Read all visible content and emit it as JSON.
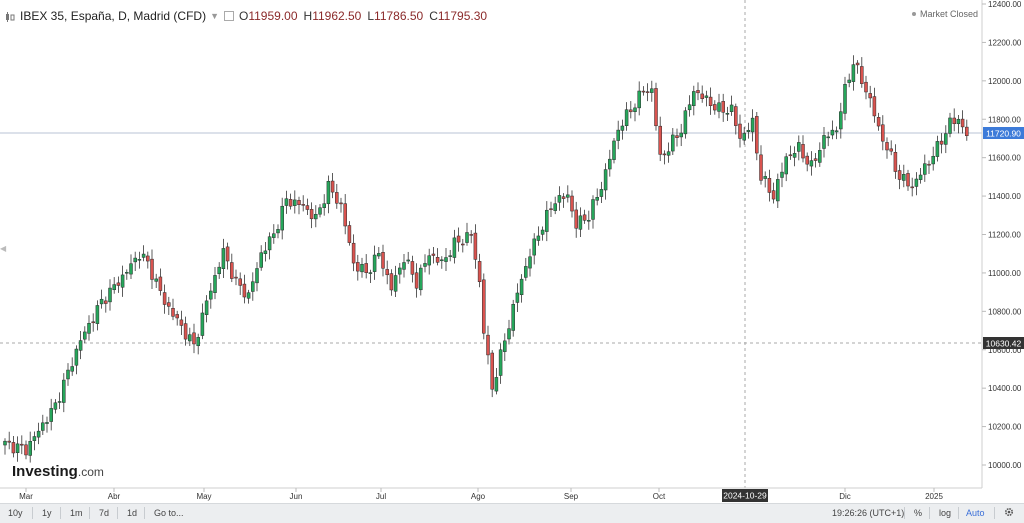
{
  "legend": {
    "symbol": "IBEX 35, España, D, Madrid (CFD)",
    "open_label": "O",
    "open": "11959.00",
    "high_label": "H",
    "high": "11962.50",
    "low_label": "L",
    "low": "11786.50",
    "close_label": "C",
    "close": "11795.30"
  },
  "status": {
    "text": "Market Closed"
  },
  "logo": {
    "main": "Investing",
    "suffix": ".com"
  },
  "crosshair": {
    "date_label": "2024-10-29",
    "price_label": "10630.42",
    "price": 10630.42
  },
  "last_price": {
    "label": "11720.90",
    "value": 11720.9
  },
  "colors": {
    "up": "#26a65b",
    "down": "#d9534f",
    "last_price_bg": "#3d7bd9",
    "crosshair_bg": "#333333",
    "grid": "#e6e6e6"
  },
  "toolbar": {
    "ranges": [
      "10y",
      "1y",
      "1m",
      "7d",
      "1d",
      "Go to..."
    ],
    "time": "19:26:26 (UTC+1)",
    "percent": "%",
    "log": "log",
    "auto": "Auto",
    "settings_icon": "gear-icon"
  },
  "chart_data": {
    "type": "candlestick",
    "title": "IBEX 35, España, D, Madrid (CFD)",
    "xlabel": "",
    "ylabel": "",
    "y_ticks": [
      "12400.00",
      "12200.00",
      "12000.00",
      "11800.00",
      "11600.00",
      "11400.00",
      "11200.00",
      "11000.00",
      "10800.00",
      "10600.00",
      "10400.00",
      "10200.00",
      "10000.00"
    ],
    "ylim": [
      9910,
      12420
    ],
    "x_tick_labels": [
      "Mar",
      "Abr",
      "May",
      "Jun",
      "Jul",
      "Ago",
      "Sep",
      "Oct",
      "Dic",
      "2025"
    ],
    "grid": false,
    "legend_position": "top-left",
    "close_anchors": [
      [
        0,
        10110
      ],
      [
        5,
        10080
      ],
      [
        12,
        10310
      ],
      [
        18,
        10650
      ],
      [
        23,
        10850
      ],
      [
        28,
        10980
      ],
      [
        32,
        11100
      ],
      [
        34,
        11050
      ],
      [
        38,
        10850
      ],
      [
        42,
        10720
      ],
      [
        45,
        10620
      ],
      [
        48,
        10850
      ],
      [
        52,
        11110
      ],
      [
        55,
        10950
      ],
      [
        58,
        10880
      ],
      [
        61,
        11100
      ],
      [
        64,
        11200
      ],
      [
        67,
        11380
      ],
      [
        71,
        11350
      ],
      [
        74,
        11280
      ],
      [
        77,
        11450
      ],
      [
        80,
        11350
      ],
      [
        83,
        11050
      ],
      [
        86,
        11000
      ],
      [
        89,
        11100
      ],
      [
        92,
        10920
      ],
      [
        95,
        11080
      ],
      [
        98,
        10950
      ],
      [
        101,
        11100
      ],
      [
        104,
        11050
      ],
      [
        107,
        11150
      ],
      [
        111,
        11200
      ],
      [
        113,
        10950
      ],
      [
        114,
        10700
      ],
      [
        116,
        10400
      ],
      [
        119,
        10650
      ],
      [
        122,
        10900
      ],
      [
        125,
        11100
      ],
      [
        128,
        11250
      ],
      [
        131,
        11380
      ],
      [
        134,
        11400
      ],
      [
        136,
        11250
      ],
      [
        139,
        11300
      ],
      [
        142,
        11450
      ],
      [
        146,
        11750
      ],
      [
        149,
        11850
      ],
      [
        152,
        11950
      ],
      [
        154,
        11950
      ],
      [
        156,
        11600
      ],
      [
        158,
        11650
      ],
      [
        161,
        11750
      ],
      [
        164,
        11950
      ],
      [
        167,
        11900
      ],
      [
        170,
        11850
      ],
      [
        173,
        11850
      ],
      [
        175,
        11700
      ],
      [
        178,
        11780
      ],
      [
        180,
        11500
      ],
      [
        183,
        11400
      ],
      [
        186,
        11600
      ],
      [
        189,
        11650
      ],
      [
        192,
        11550
      ],
      [
        195,
        11700
      ],
      [
        198,
        11750
      ],
      [
        200,
        11950
      ],
      [
        202,
        12100
      ],
      [
        204,
        12000
      ],
      [
        206,
        11900
      ],
      [
        208,
        11750
      ],
      [
        210,
        11650
      ],
      [
        213,
        11500
      ],
      [
        216,
        11450
      ],
      [
        219,
        11550
      ],
      [
        222,
        11650
      ],
      [
        225,
        11780
      ],
      [
        227,
        11800
      ],
      [
        229,
        11720
      ]
    ]
  }
}
